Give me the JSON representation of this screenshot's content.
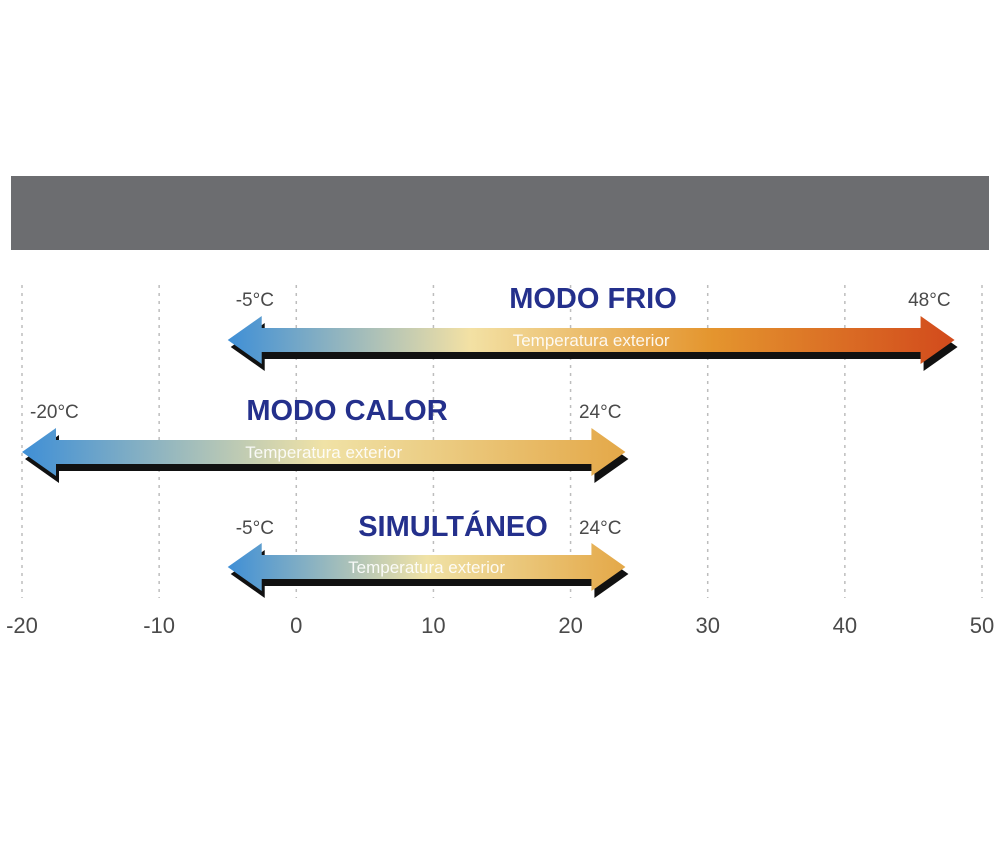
{
  "header": {
    "color": "#6c6d70"
  },
  "axis": {
    "min": -20,
    "max": 50,
    "ticks": [
      -20,
      -10,
      0,
      10,
      20,
      30,
      40,
      50
    ],
    "tick_labels": [
      "-20",
      "-10",
      "0",
      "10",
      "20",
      "30",
      "40",
      "50"
    ],
    "grid": true
  },
  "modes": [
    {
      "title": "MODO FRIO",
      "min": -5,
      "max": 48,
      "min_label": "-5°C",
      "max_label": "48°C",
      "caption": "Temperatura exterior",
      "gradient": [
        "#3f8fd6",
        "#f3e1a4",
        "#e4952e",
        "#d24a1c"
      ]
    },
    {
      "title": "MODO CALOR",
      "min": -20,
      "max": 24,
      "min_label": "-20°C",
      "max_label": "24°C",
      "caption": "Temperatura exterior",
      "gradient": [
        "#3f8fd6",
        "#f0e2a6",
        "#e4a848"
      ]
    },
    {
      "title": "SIMULTÁNEO",
      "min": -5,
      "max": 24,
      "min_label": "-5°C",
      "max_label": "24°C",
      "caption": "Temperatura exterior",
      "gradient": [
        "#3f8fd6",
        "#f0e2a6",
        "#e4a848"
      ]
    }
  ],
  "colors": {
    "title": "#24308c",
    "label": "#4a4a4a",
    "shadow": "#111111",
    "grid": "#bdbdbd"
  }
}
